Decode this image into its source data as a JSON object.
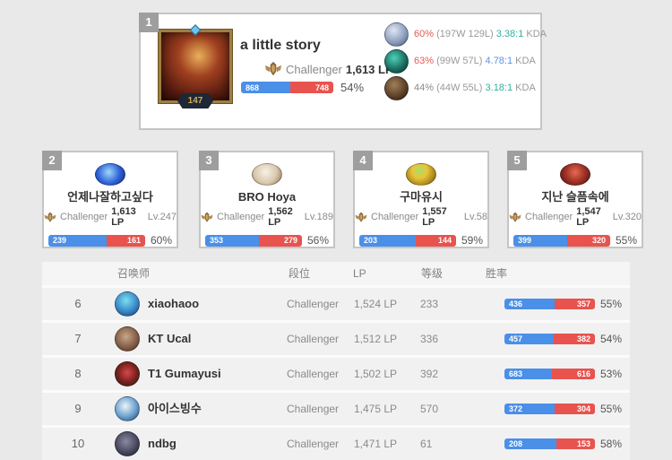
{
  "colors": {
    "win_blue": "#4a8fe8",
    "loss_red": "#e8534e",
    "winrate_red": "#e25a55",
    "kda_teal": "#31b0a0",
    "kda_blue": "#5b94e8",
    "muted_gray": "#999999"
  },
  "icons": {
    "tier": "challenger-crest"
  },
  "top_player": {
    "rank": "1",
    "name": "a little story",
    "tier": "Challenger",
    "lp": "1,613 LP",
    "level": "147",
    "wins": 868,
    "losses": 748,
    "winrate": "54%",
    "avatar_bg": "radial-gradient(circle at 55% 35%, #e8b05a 0%, #a04020 35%, #571c10 72%, #2a0c06 100%)",
    "champions": [
      {
        "winrate": "60%",
        "record": "(197W 129L)",
        "kda": "3.38:1",
        "kda_suffix": "KDA",
        "winrate_color": "#e25a55",
        "kda_color": "#31b0a0",
        "avatar_bg": "radial-gradient(circle at 38% 32%, #dfe6f2 0%, #90a0c0 55%, #4a5878 100%)"
      },
      {
        "winrate": "63%",
        "record": "(99W 57L)",
        "kda": "4.78:1",
        "kda_suffix": "KDA",
        "winrate_color": "#e25a55",
        "kda_color": "#5b94e8",
        "avatar_bg": "radial-gradient(circle at 40% 35%, #4fd0b8 0%, #18685c 60%, #0a332c 100%)"
      },
      {
        "winrate": "44%",
        "record": "(44W 55L)",
        "kda": "3.18:1",
        "kda_suffix": "KDA",
        "winrate_color": "#8a8a8a",
        "kda_color": "#31b0a0",
        "avatar_bg": "radial-gradient(circle at 40% 35%, #a08058 0%, #5a3f28 60%, #241710 100%)"
      }
    ]
  },
  "rank_cards": [
    {
      "rank": "2",
      "name": "언제나잘하고싶다",
      "tier": "Challenger",
      "lp": "1,613 LP",
      "level": "Lv.247",
      "wins": 239,
      "losses": 161,
      "winrate": "60%",
      "avatar_bg": "radial-gradient(circle at 45% 40%, #9fd8f8 0%, #2f62d8 55%, #0c2470 100%)"
    },
    {
      "rank": "3",
      "name": "BRO Hoya",
      "tier": "Challenger",
      "lp": "1,562 LP",
      "level": "Lv.189",
      "wins": 353,
      "losses": 279,
      "winrate": "56%",
      "avatar_bg": "radial-gradient(circle at 45% 38%, #f7f1e7 0%, #d8c8ae 55%, #8a6a48 100%)"
    },
    {
      "rank": "4",
      "name": "구마유시",
      "tier": "Challenger",
      "lp": "1,557 LP",
      "level": "Lv.58",
      "wins": 203,
      "losses": 144,
      "winrate": "59%",
      "avatar_bg": "radial-gradient(circle at 45% 32%, #aadd66 0%, #e8c63c 35%, #a8821a 72%, #6a5208 100%)"
    },
    {
      "rank": "5",
      "name": "지난 슬픔속에",
      "tier": "Challenger",
      "lp": "1,547 LP",
      "level": "Lv.320",
      "wins": 399,
      "losses": 320,
      "winrate": "55%",
      "avatar_bg": "radial-gradient(circle at 50% 40%, #e86a50 0%, #a03226 50%, #481410 100%)"
    }
  ],
  "table": {
    "headers": [
      "召唤师",
      "段位",
      "LP",
      "等级",
      "胜率"
    ],
    "rows": [
      {
        "rank": "6",
        "name": "xiaohaoo",
        "tier": "Challenger",
        "lp": "1,524 LP",
        "level": "233",
        "wins": 436,
        "losses": 357,
        "winrate": "55%",
        "avatar_bg": "radial-gradient(circle at 45% 35%, #7ae0f0 0%, #3a88c8 55%, #18365e 100%)"
      },
      {
        "rank": "7",
        "name": "KT Ucal",
        "tier": "Challenger",
        "lp": "1,512 LP",
        "level": "336",
        "wins": 457,
        "losses": 382,
        "winrate": "54%",
        "avatar_bg": "radial-gradient(circle at 45% 40%, #c8a888 0%, #86604a 55%, #402a1c 100%)"
      },
      {
        "rank": "8",
        "name": "T1 Gumayusi",
        "tier": "Challenger",
        "lp": "1,502 LP",
        "level": "392",
        "wins": 683,
        "losses": 616,
        "winrate": "53%",
        "avatar_bg": "radial-gradient(circle at 50% 45%, #d84848 0%, #78201e 55%, #122a12 100%)"
      },
      {
        "rank": "9",
        "name": "아이스빙수",
        "tier": "Challenger",
        "lp": "1,475 LP",
        "level": "570",
        "wins": 372,
        "losses": 304,
        "winrate": "55%",
        "avatar_bg": "radial-gradient(circle at 42% 38%, #eef4fa 0%, #6aa0cc 55%, #1c3c64 100%)"
      },
      {
        "rank": "10",
        "name": "ndbg",
        "tier": "Challenger",
        "lp": "1,471 LP",
        "level": "61",
        "wins": 208,
        "losses": 153,
        "winrate": "58%",
        "avatar_bg": "radial-gradient(circle at 45% 40%, #8a8aa0 0%, #4a4a60 55%, #1a1a28 100%)"
      }
    ]
  }
}
